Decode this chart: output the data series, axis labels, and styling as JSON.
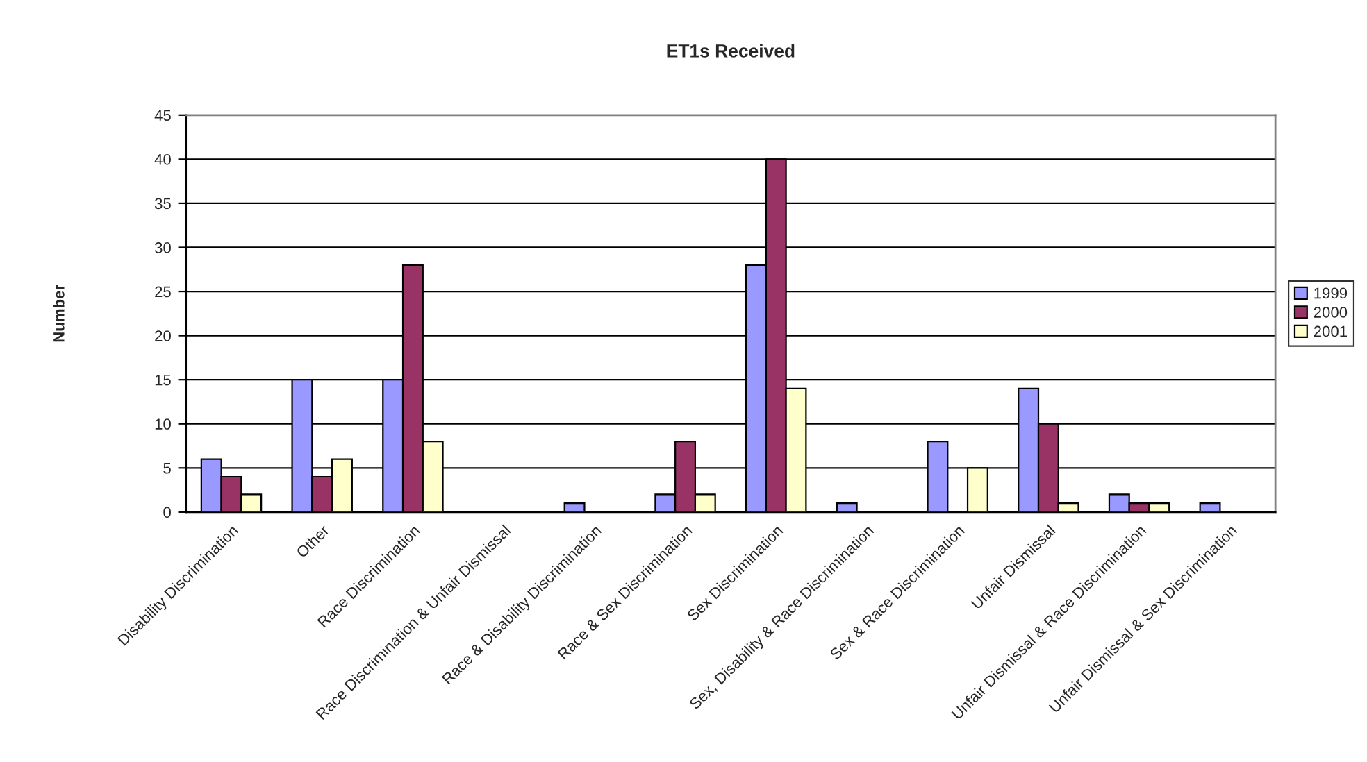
{
  "chart_data": {
    "type": "bar",
    "title": "ET1s Received",
    "ylabel": "Number",
    "categories": [
      "Disability Discrimination",
      "Other",
      "Race Discrimination",
      "Race Discrimination & Unfair Dismissal",
      "Race & Disability Discrimination",
      "Race & Sex Discrimination",
      "Sex Discrimination",
      "Sex, Disability & Race Discrimination",
      "Sex & Race Discrimination",
      "Unfair Dismissal",
      "Unfair Dismissal & Race Discrimination",
      "Unfair Dismissal & Sex Discrimination"
    ],
    "series": [
      {
        "name": "1999",
        "color": "#9999ff",
        "values": [
          6,
          15,
          15,
          null,
          1,
          2,
          28,
          1,
          8,
          14,
          2,
          1
        ]
      },
      {
        "name": "2000",
        "color": "#993366",
        "values": [
          4,
          4,
          28,
          null,
          null,
          8,
          40,
          null,
          null,
          10,
          1,
          null
        ]
      },
      {
        "name": "2001",
        "color": "#ffffcc",
        "values": [
          2,
          6,
          8,
          null,
          null,
          2,
          14,
          null,
          5,
          1,
          1,
          null
        ]
      }
    ],
    "ylim": [
      0,
      45
    ],
    "yticks": [
      0,
      5,
      10,
      15,
      20,
      25,
      30,
      35,
      40,
      45
    ],
    "grid": "y",
    "legend": "right"
  }
}
